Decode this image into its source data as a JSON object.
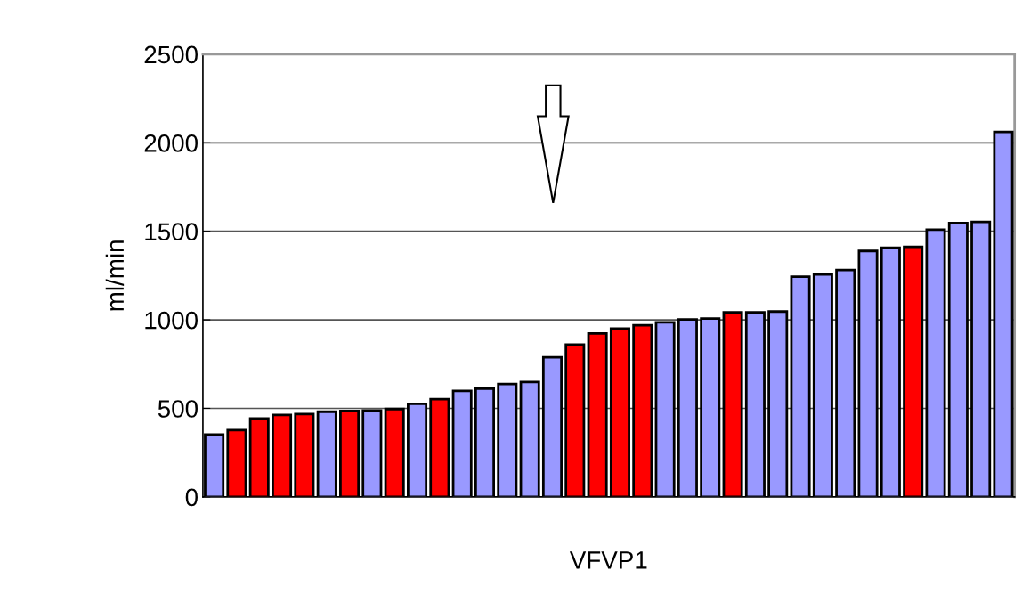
{
  "chart_data": {
    "type": "bar",
    "xlabel": "VFVP1",
    "ylabel": "ml/min",
    "categories": [
      null,
      null,
      null,
      null,
      null,
      null,
      null,
      null,
      null,
      null,
      null,
      null,
      null,
      null,
      null,
      null,
      null,
      null,
      null,
      null,
      null,
      null,
      null,
      null,
      null,
      null,
      null,
      null,
      null,
      null,
      null,
      null,
      null,
      null,
      null,
      null
    ],
    "values": [
      352,
      377,
      443,
      463,
      468,
      481,
      485,
      488,
      496,
      526,
      552,
      599,
      611,
      637,
      649,
      788,
      860,
      923,
      951,
      970,
      986,
      1002,
      1007,
      1042,
      1042,
      1047,
      1244,
      1256,
      1282,
      1389,
      1407,
      1412,
      1509,
      1547,
      1553,
      2061
    ],
    "colors": [
      "#9999ff",
      "#ff0000",
      "#ff0000",
      "#ff0000",
      "#ff0000",
      "#9999ff",
      "#ff0000",
      "#9999ff",
      "#ff0000",
      "#9999ff",
      "#ff0000",
      "#9999ff",
      "#9999ff",
      "#9999ff",
      "#9999ff",
      "#9999ff",
      "#ff0000",
      "#ff0000",
      "#ff0000",
      "#ff0000",
      "#9999ff",
      "#9999ff",
      "#9999ff",
      "#ff0000",
      "#9999ff",
      "#9999ff",
      "#9999ff",
      "#9999ff",
      "#9999ff",
      "#9999ff",
      "#9999ff",
      "#ff0000",
      "#9999ff",
      "#9999ff",
      "#9999ff",
      "#9999ff"
    ],
    "ylim": [
      0,
      2500
    ],
    "yticks": [
      0,
      500,
      1000,
      1500,
      2000,
      2500
    ],
    "grid": "y",
    "legend": false
  }
}
